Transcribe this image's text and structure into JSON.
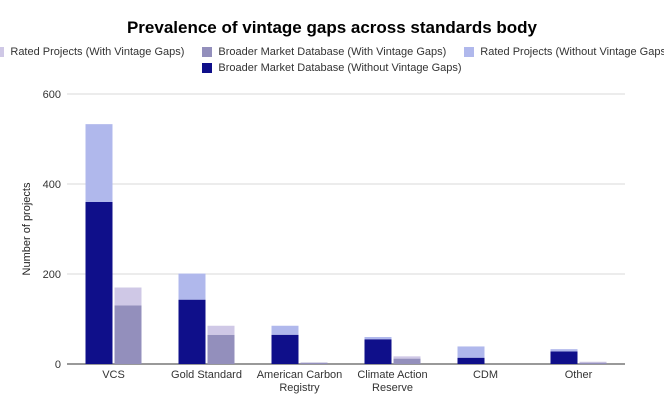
{
  "chart_data": {
    "type": "bar",
    "title": "Prevalence of vintage gaps across standards body",
    "xlabel": "",
    "ylabel": "Number of projects",
    "ylim": [
      0,
      600
    ],
    "yticks": [
      "0",
      "200",
      "400",
      "600"
    ],
    "grid": true,
    "legend_position": "top",
    "categories": [
      [
        "VCS"
      ],
      [
        "Gold Standard"
      ],
      [
        "American Carbon",
        "Registry"
      ],
      [
        "Climate Action",
        "Reserve"
      ],
      [
        "CDM"
      ],
      [
        "Other"
      ]
    ],
    "series": [
      {
        "name": "Rated Projects (With Vintage Gaps)",
        "stack": "right",
        "color": "#cfc8e6",
        "values": [
          40,
          20,
          0,
          5,
          0,
          2
        ]
      },
      {
        "name": "Broader Market Database (With Vintage Gaps)",
        "stack": "right",
        "color": "#938fbc",
        "values": [
          130,
          65,
          3,
          12,
          0,
          3
        ]
      },
      {
        "name": "Rated Projects (Without Vintage Gaps)",
        "stack": "left",
        "color": "#b0b8ec",
        "values": [
          173,
          58,
          20,
          5,
          25,
          5
        ]
      },
      {
        "name": "Broader Market Database (Without Vintage Gaps)",
        "stack": "left",
        "color": "#0f0f8a",
        "values": [
          360,
          143,
          65,
          55,
          14,
          28
        ]
      }
    ]
  }
}
